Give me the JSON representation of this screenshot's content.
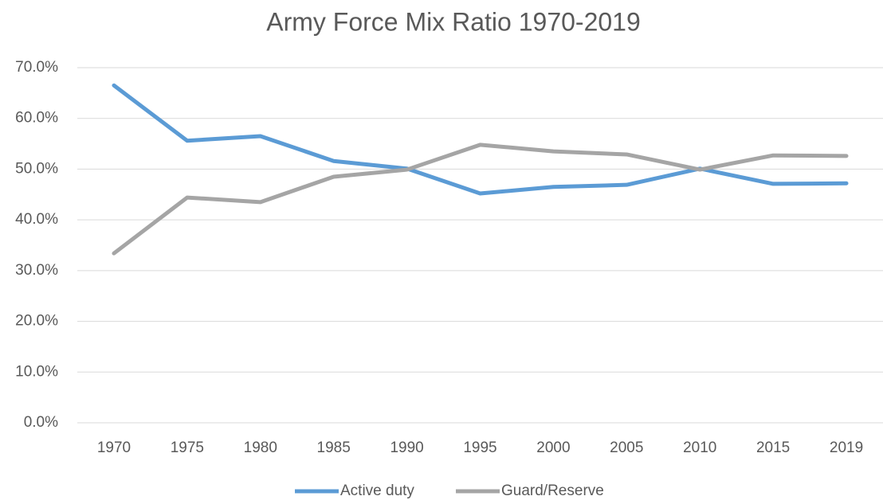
{
  "chart_data": {
    "type": "line",
    "title": "Army Force Mix Ratio 1970-2019",
    "categories": [
      "1970",
      "1975",
      "1980",
      "1985",
      "1990",
      "1995",
      "2000",
      "2005",
      "2010",
      "2015",
      "2019"
    ],
    "series": [
      {
        "name": "Active duty",
        "color": "#5b9bd5",
        "values": [
          66.5,
          55.6,
          56.5,
          51.6,
          50.1,
          45.2,
          46.5,
          46.9,
          50.1,
          47.1,
          47.2
        ]
      },
      {
        "name": "Guard/Reserve",
        "color": "#a5a5a5",
        "values": [
          33.4,
          44.4,
          43.5,
          48.5,
          49.9,
          54.8,
          53.5,
          52.9,
          49.9,
          52.7,
          52.6
        ]
      }
    ],
    "ylim": [
      0,
      70
    ],
    "yticks": [
      {
        "value": 0,
        "label": "0.0%"
      },
      {
        "value": 10,
        "label": "10.0%"
      },
      {
        "value": 20,
        "label": "20.0%"
      },
      {
        "value": 30,
        "label": "30.0%"
      },
      {
        "value": 40,
        "label": "40.0%"
      },
      {
        "value": 50,
        "label": "50.0%"
      },
      {
        "value": 60,
        "label": "60.0%"
      },
      {
        "value": 70,
        "label": "70.0%"
      }
    ],
    "grid": true,
    "legend": "bottom"
  }
}
